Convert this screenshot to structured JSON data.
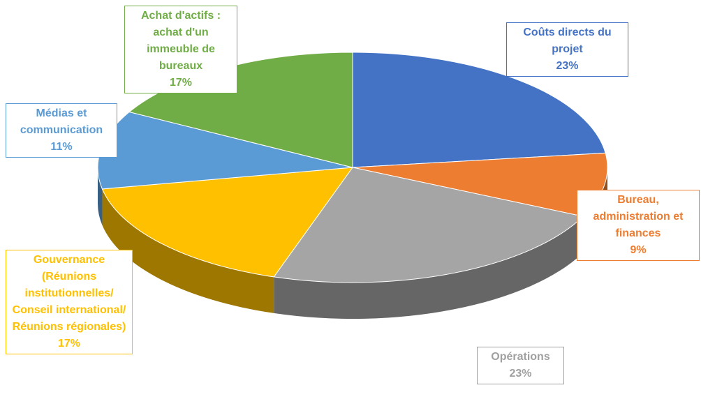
{
  "chart_data": {
    "type": "pie",
    "categories": [
      "Coûts directs du projet",
      "Bureau, administration et finances",
      "Opérations",
      "Gouvernance (Réunions institutionnelles/ Conseil international/ Réunions régionales)",
      "Médias et communication",
      "Achat d'actifs : achat d'un immeuble de bureaux"
    ],
    "values": [
      23,
      9,
      23,
      17,
      11,
      17
    ],
    "value_labels": [
      "23%",
      "9%",
      "23%",
      "17%",
      "11%",
      "17%"
    ],
    "colors": [
      "#4472c4",
      "#ed7d31",
      "#a5a5a5",
      "#ffc000",
      "#5b9bd5",
      "#70ad47"
    ]
  }
}
